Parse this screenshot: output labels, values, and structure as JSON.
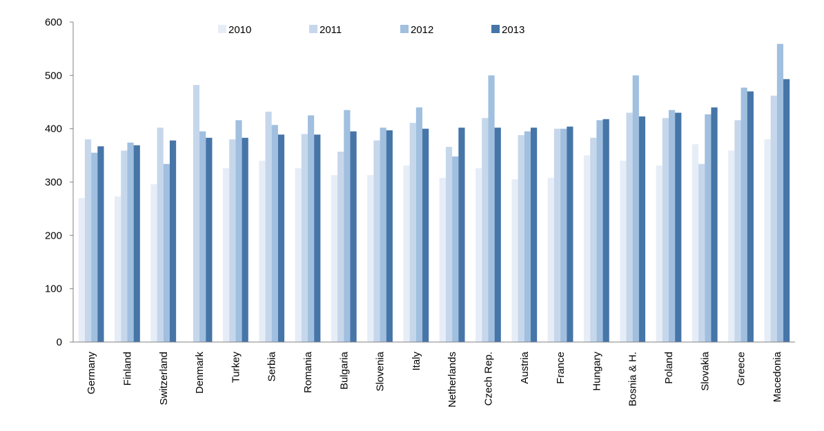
{
  "chart_data": {
    "type": "bar",
    "title": "",
    "xlabel": "",
    "ylabel": "",
    "ylim": [
      0,
      600
    ],
    "yticks": [
      0,
      100,
      200,
      300,
      400,
      500,
      600
    ],
    "grid": false,
    "legend_position": "top",
    "categories": [
      "Germany",
      "Finland",
      "Switzerland",
      "Denmark",
      "Turkey",
      "Serbia",
      "Romania",
      "Bulgaria",
      "Slovenia",
      "Italy",
      "Netherlands",
      "Czech Rep.",
      "Austria",
      "France",
      "Hungary",
      "Bosnia & H.",
      "Poland",
      "Slovakia",
      "Greece",
      "Macedonia"
    ],
    "series": [
      {
        "name": "2010",
        "color": "#e6edf7",
        "values": [
          270,
          273,
          296,
          0,
          326,
          340,
          326,
          313,
          313,
          331,
          308,
          326,
          305,
          308,
          350,
          340,
          331,
          371,
          359,
          380
        ]
      },
      {
        "name": "2011",
        "color": "#c6d7ec",
        "values": [
          380,
          359,
          402,
          482,
          380,
          432,
          390,
          357,
          378,
          411,
          366,
          420,
          388,
          400,
          383,
          430,
          420,
          334,
          416,
          462
        ]
      },
      {
        "name": "2012",
        "color": "#a1bfdf",
        "values": [
          355,
          374,
          334,
          395,
          416,
          407,
          425,
          435,
          402,
          440,
          348,
          500,
          395,
          400,
          416,
          500,
          435,
          427,
          477,
          559
        ]
      },
      {
        "name": "2013",
        "color": "#4675a8",
        "values": [
          367,
          369,
          378,
          383,
          383,
          389,
          389,
          395,
          397,
          400,
          402,
          402,
          402,
          404,
          418,
          423,
          430,
          440,
          470,
          493
        ]
      }
    ]
  }
}
